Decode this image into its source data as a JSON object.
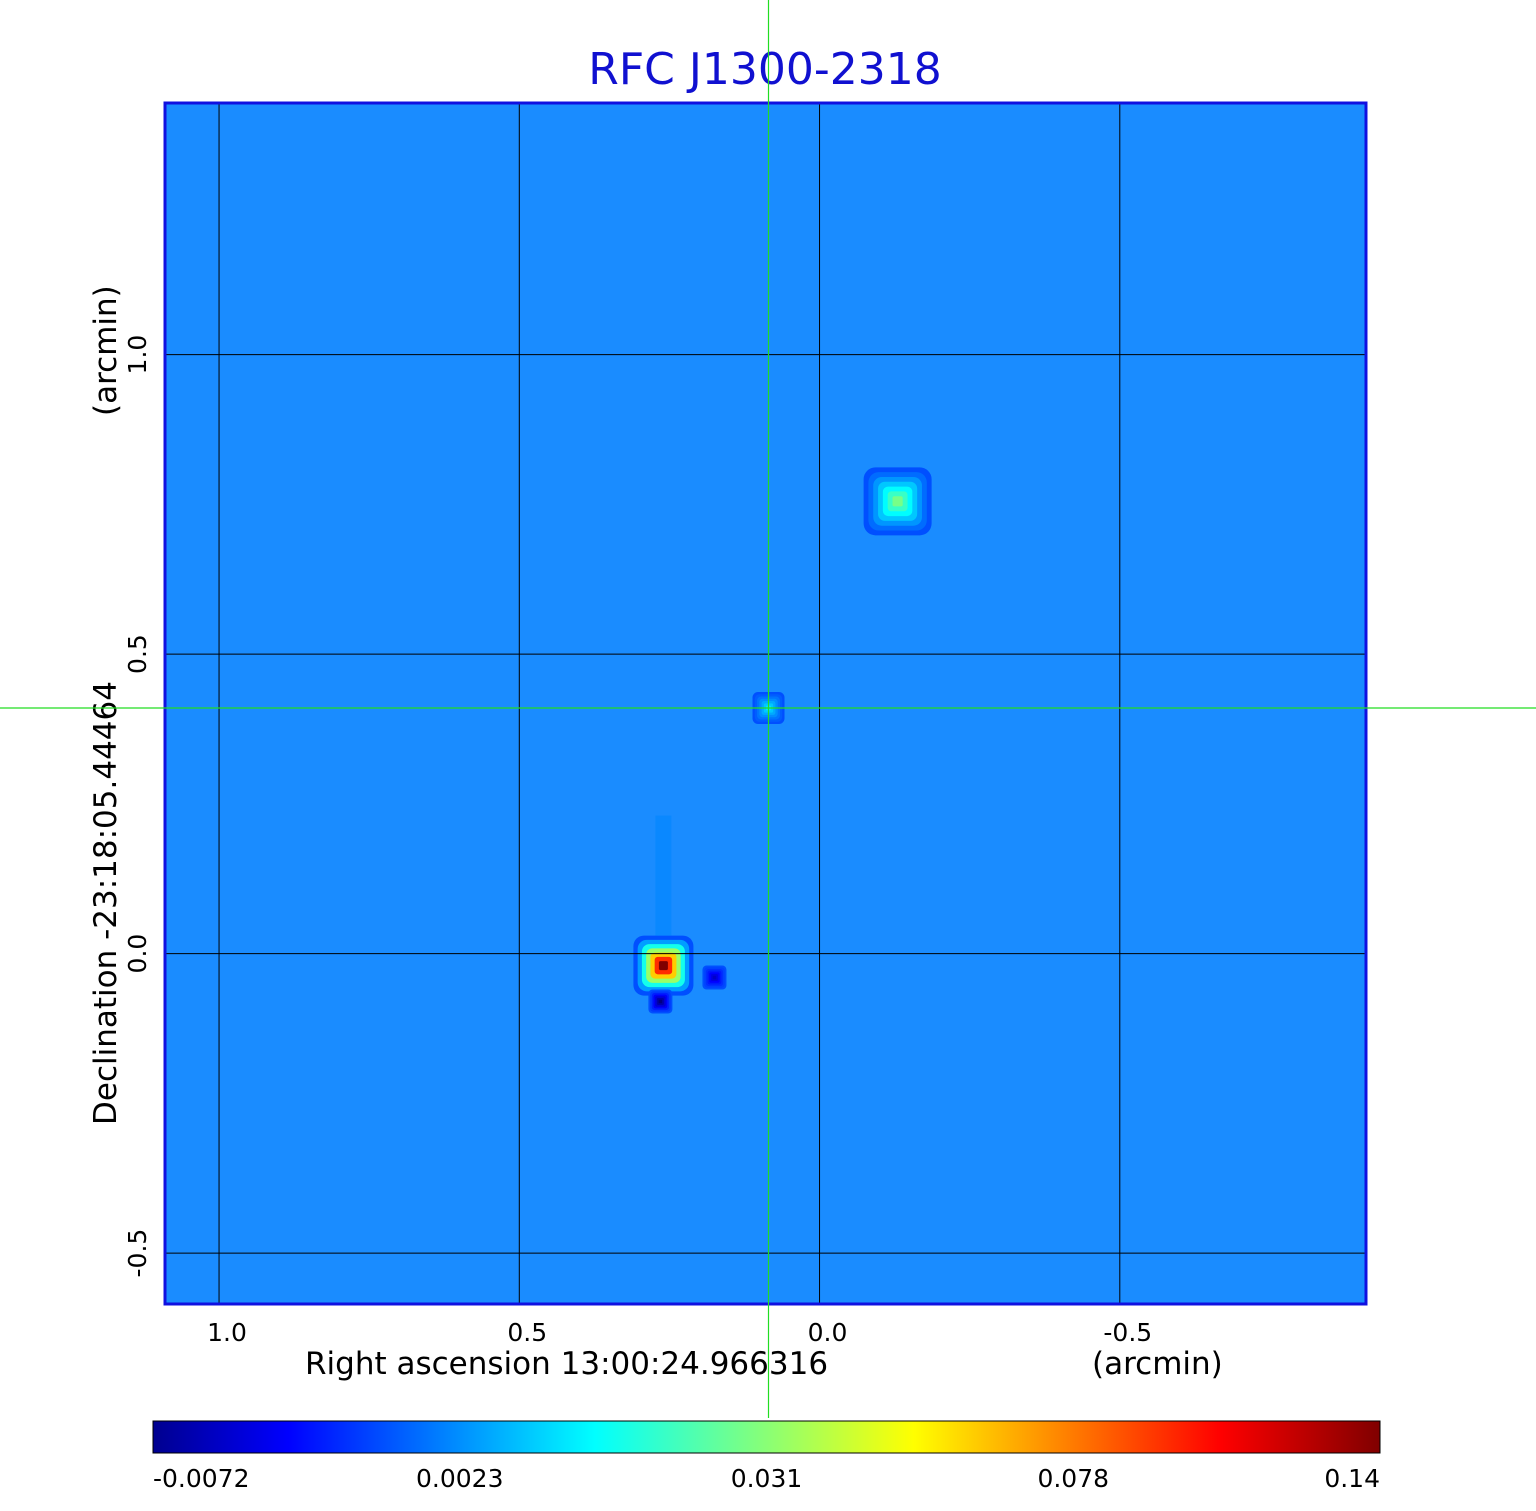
{
  "chart_data": {
    "type": "heatmap",
    "title": "RFC J1300-2318",
    "xlabel": "Right ascension  13:00:24.966316",
    "xunit": "(arcmin)",
    "ylabel": "Declination  -23:18:05.44464",
    "yunit": "(arcmin)",
    "x_ticks": [
      1.0,
      0.5,
      0.0,
      -0.5
    ],
    "x_tick_labels": [
      "1.0",
      "0.5",
      "0.0",
      "-0.5"
    ],
    "y_ticks": [
      1.0,
      0.5,
      0.0,
      -0.5
    ],
    "y_tick_labels": [
      "1.0",
      "0.5",
      "0.0",
      "-0.5"
    ],
    "xlim": [
      1.09,
      -0.91
    ],
    "ylim": [
      -0.585,
      1.42
    ],
    "grid": true,
    "crosshair": {
      "x": 0.085,
      "y": 0.41
    },
    "colorbar": {
      "tick_values": [
        -0.0072,
        0.0023,
        0.031,
        0.078,
        0.14
      ],
      "tick_labels": [
        "-0.0072",
        "0.0023",
        "0.031",
        "0.078",
        "0.14"
      ],
      "colormap": "jet"
    },
    "background_level": 0.0005,
    "sources": [
      {
        "ra_offset": 0.26,
        "dec_offset": -0.02,
        "peak": 0.14
      },
      {
        "ra_offset": -0.13,
        "dec_offset": 0.755,
        "peak": 0.03
      },
      {
        "ra_offset": 0.085,
        "dec_offset": 0.41,
        "peak": 0.014
      }
    ],
    "negative_sidelobes": [
      {
        "ra_offset": 0.265,
        "dec_offset": -0.08,
        "peak": -0.0072
      },
      {
        "ra_offset": 0.175,
        "dec_offset": -0.04,
        "peak": -0.0045
      }
    ]
  },
  "colors": {
    "title": "#1010d0",
    "frame": "#1010e0",
    "grid": "#000000",
    "crosshair": "#22dd22",
    "text": "#000000",
    "background_map": "#1a8cff"
  }
}
